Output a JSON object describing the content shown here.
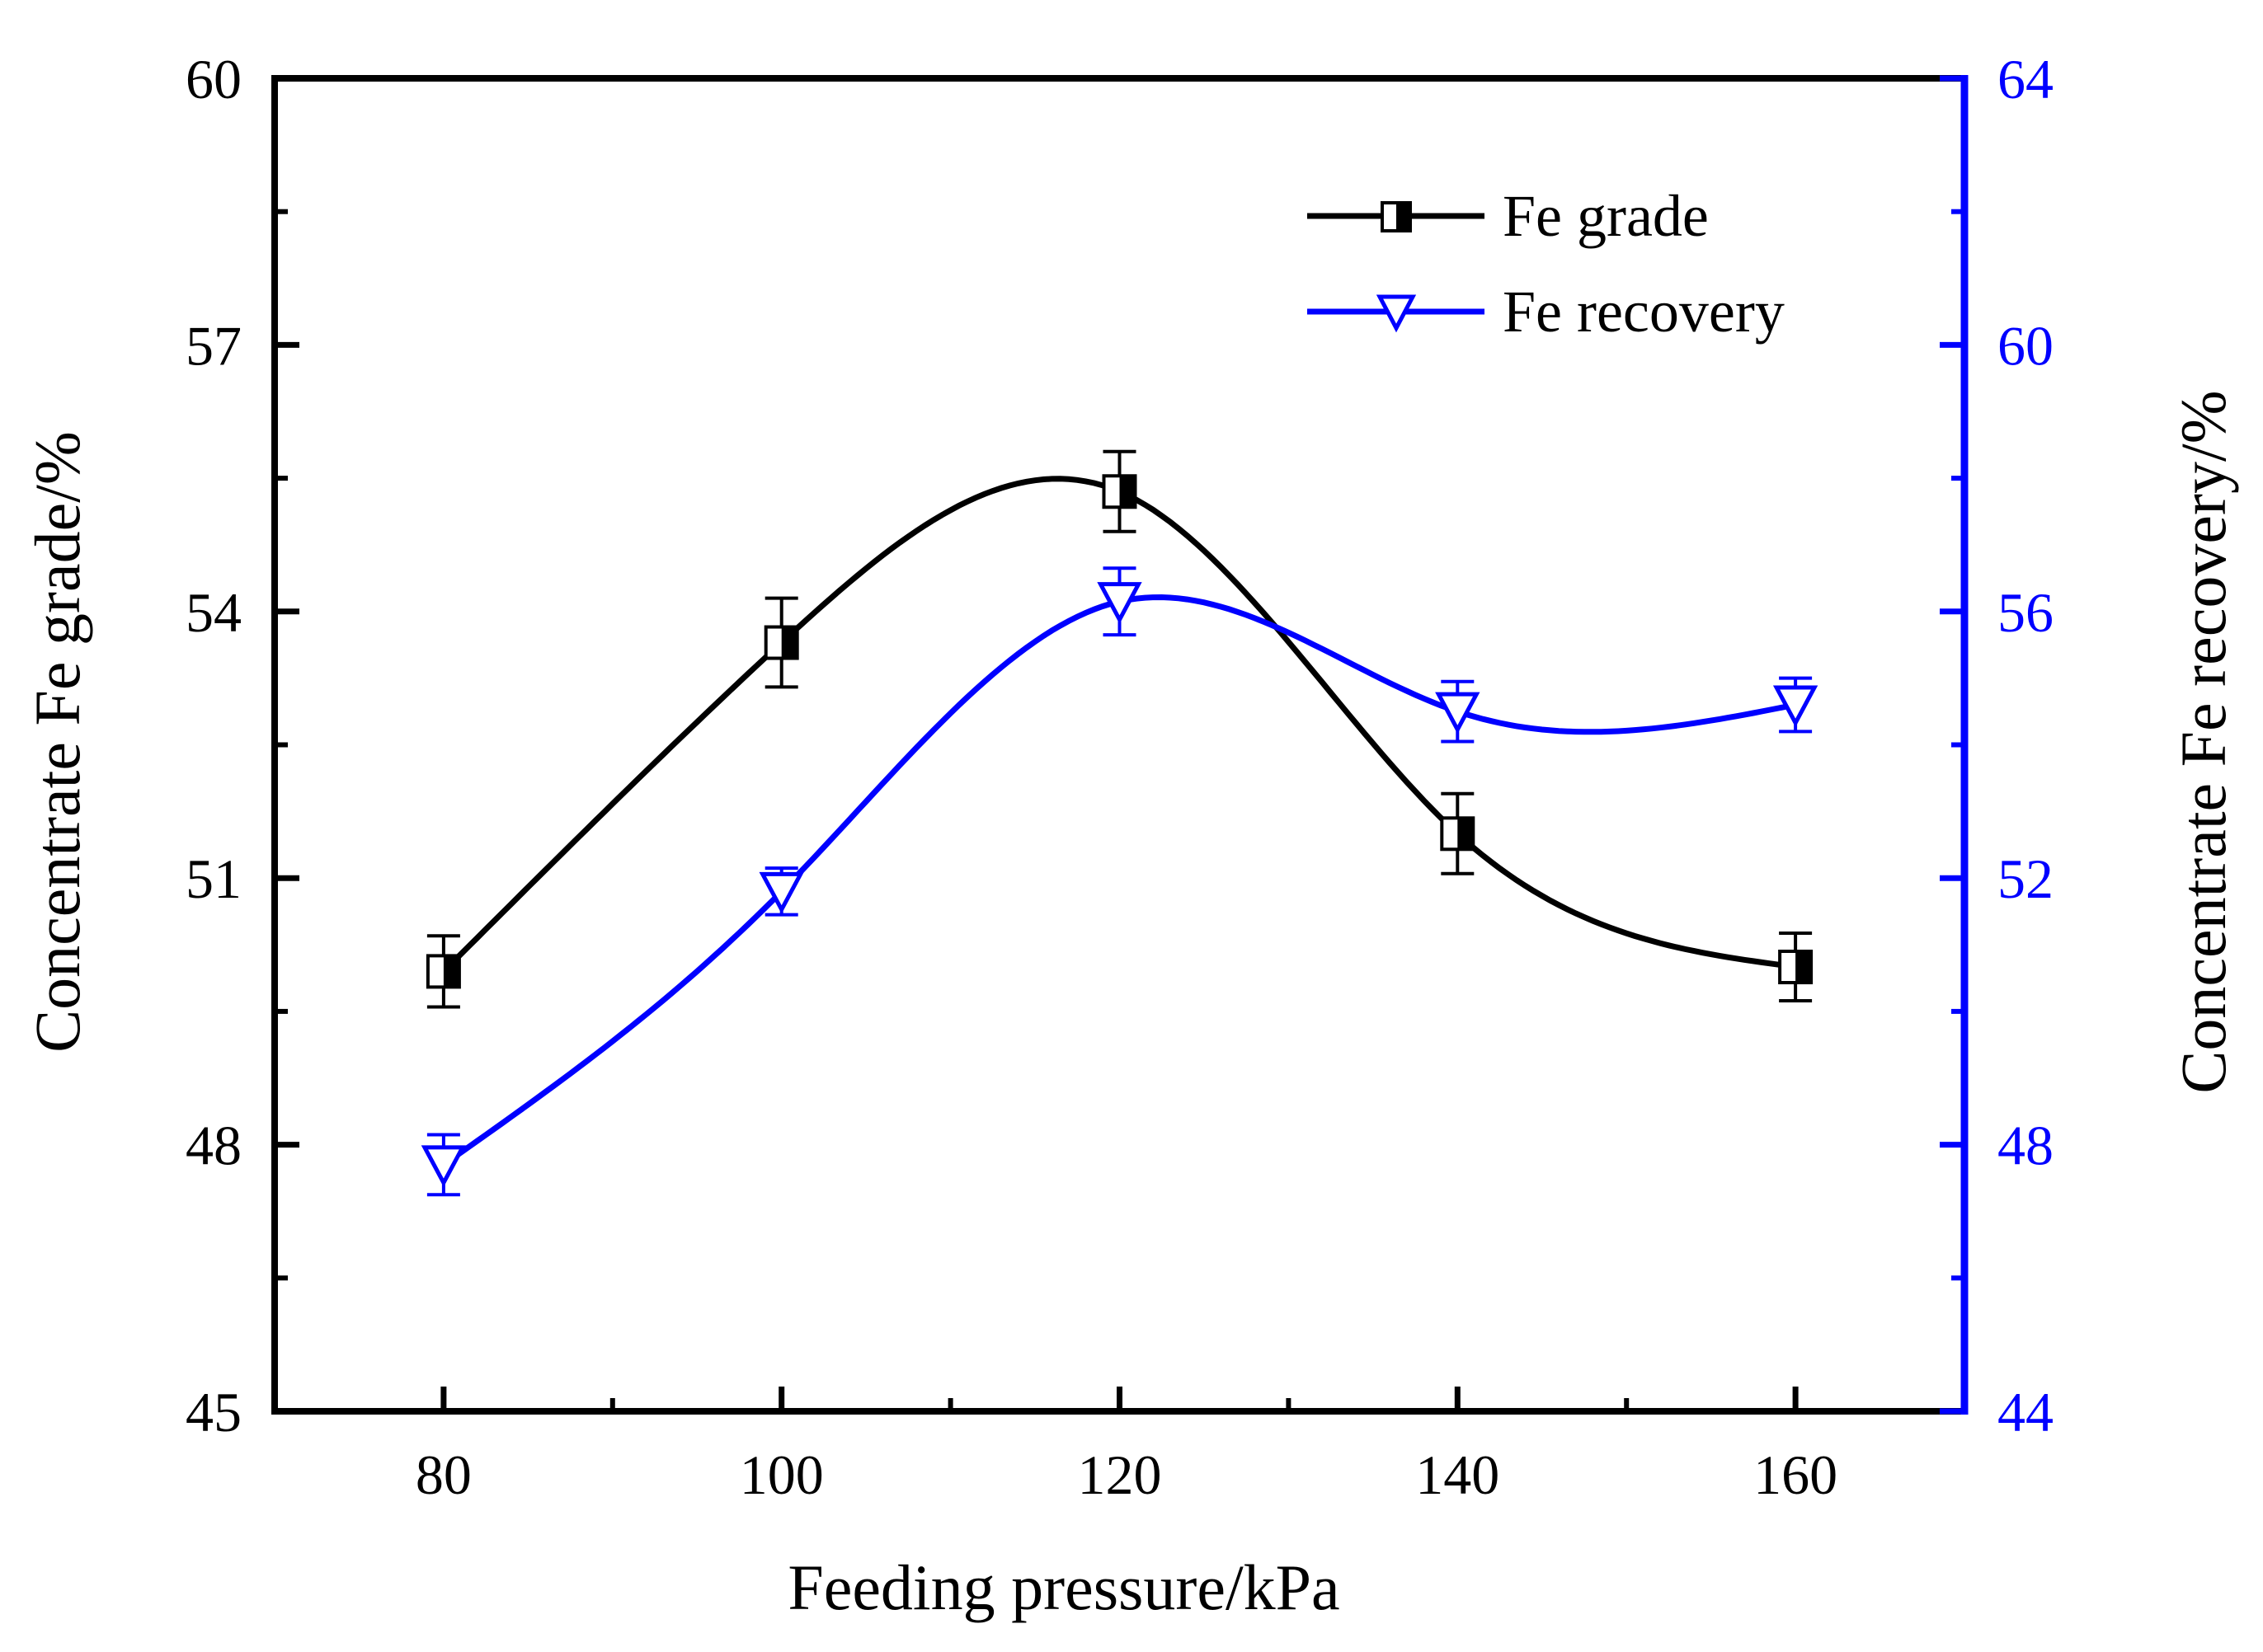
{
  "chart_data": {
    "type": "line",
    "xlabel": "Feeding pressure/kPa",
    "ylabel": "Concentrate Fe grade/%",
    "y2label": "Concentrate Fe recovery/%",
    "xlim": [
      70,
      170
    ],
    "ylim": [
      45,
      60
    ],
    "y2lim": [
      44,
      64
    ],
    "x_ticks": [
      80,
      100,
      120,
      140,
      160
    ],
    "y_ticks": [
      45,
      48,
      51,
      54,
      57,
      60
    ],
    "y2_ticks": [
      44,
      48,
      52,
      56,
      60,
      64
    ],
    "grid": false,
    "legend_position": "top-right",
    "colors": {
      "grade": "#000000",
      "recovery": "#0000ff"
    },
    "series": [
      {
        "name": "Fe grade",
        "axis": "left",
        "marker": "half-filled-square",
        "x": [
          80,
          100,
          120,
          140,
          160
        ],
        "values": [
          49.95,
          53.65,
          55.35,
          51.5,
          50.0
        ],
        "error": [
          0.4,
          0.5,
          0.45,
          0.45,
          0.38
        ]
      },
      {
        "name": "Fe recovery",
        "axis": "right",
        "marker": "down-triangle",
        "x": [
          80,
          100,
          120,
          140,
          160
        ],
        "values": [
          47.7,
          51.8,
          56.15,
          54.5,
          54.6
        ],
        "error": [
          0.45,
          0.35,
          0.5,
          0.45,
          0.4
        ]
      }
    ]
  }
}
